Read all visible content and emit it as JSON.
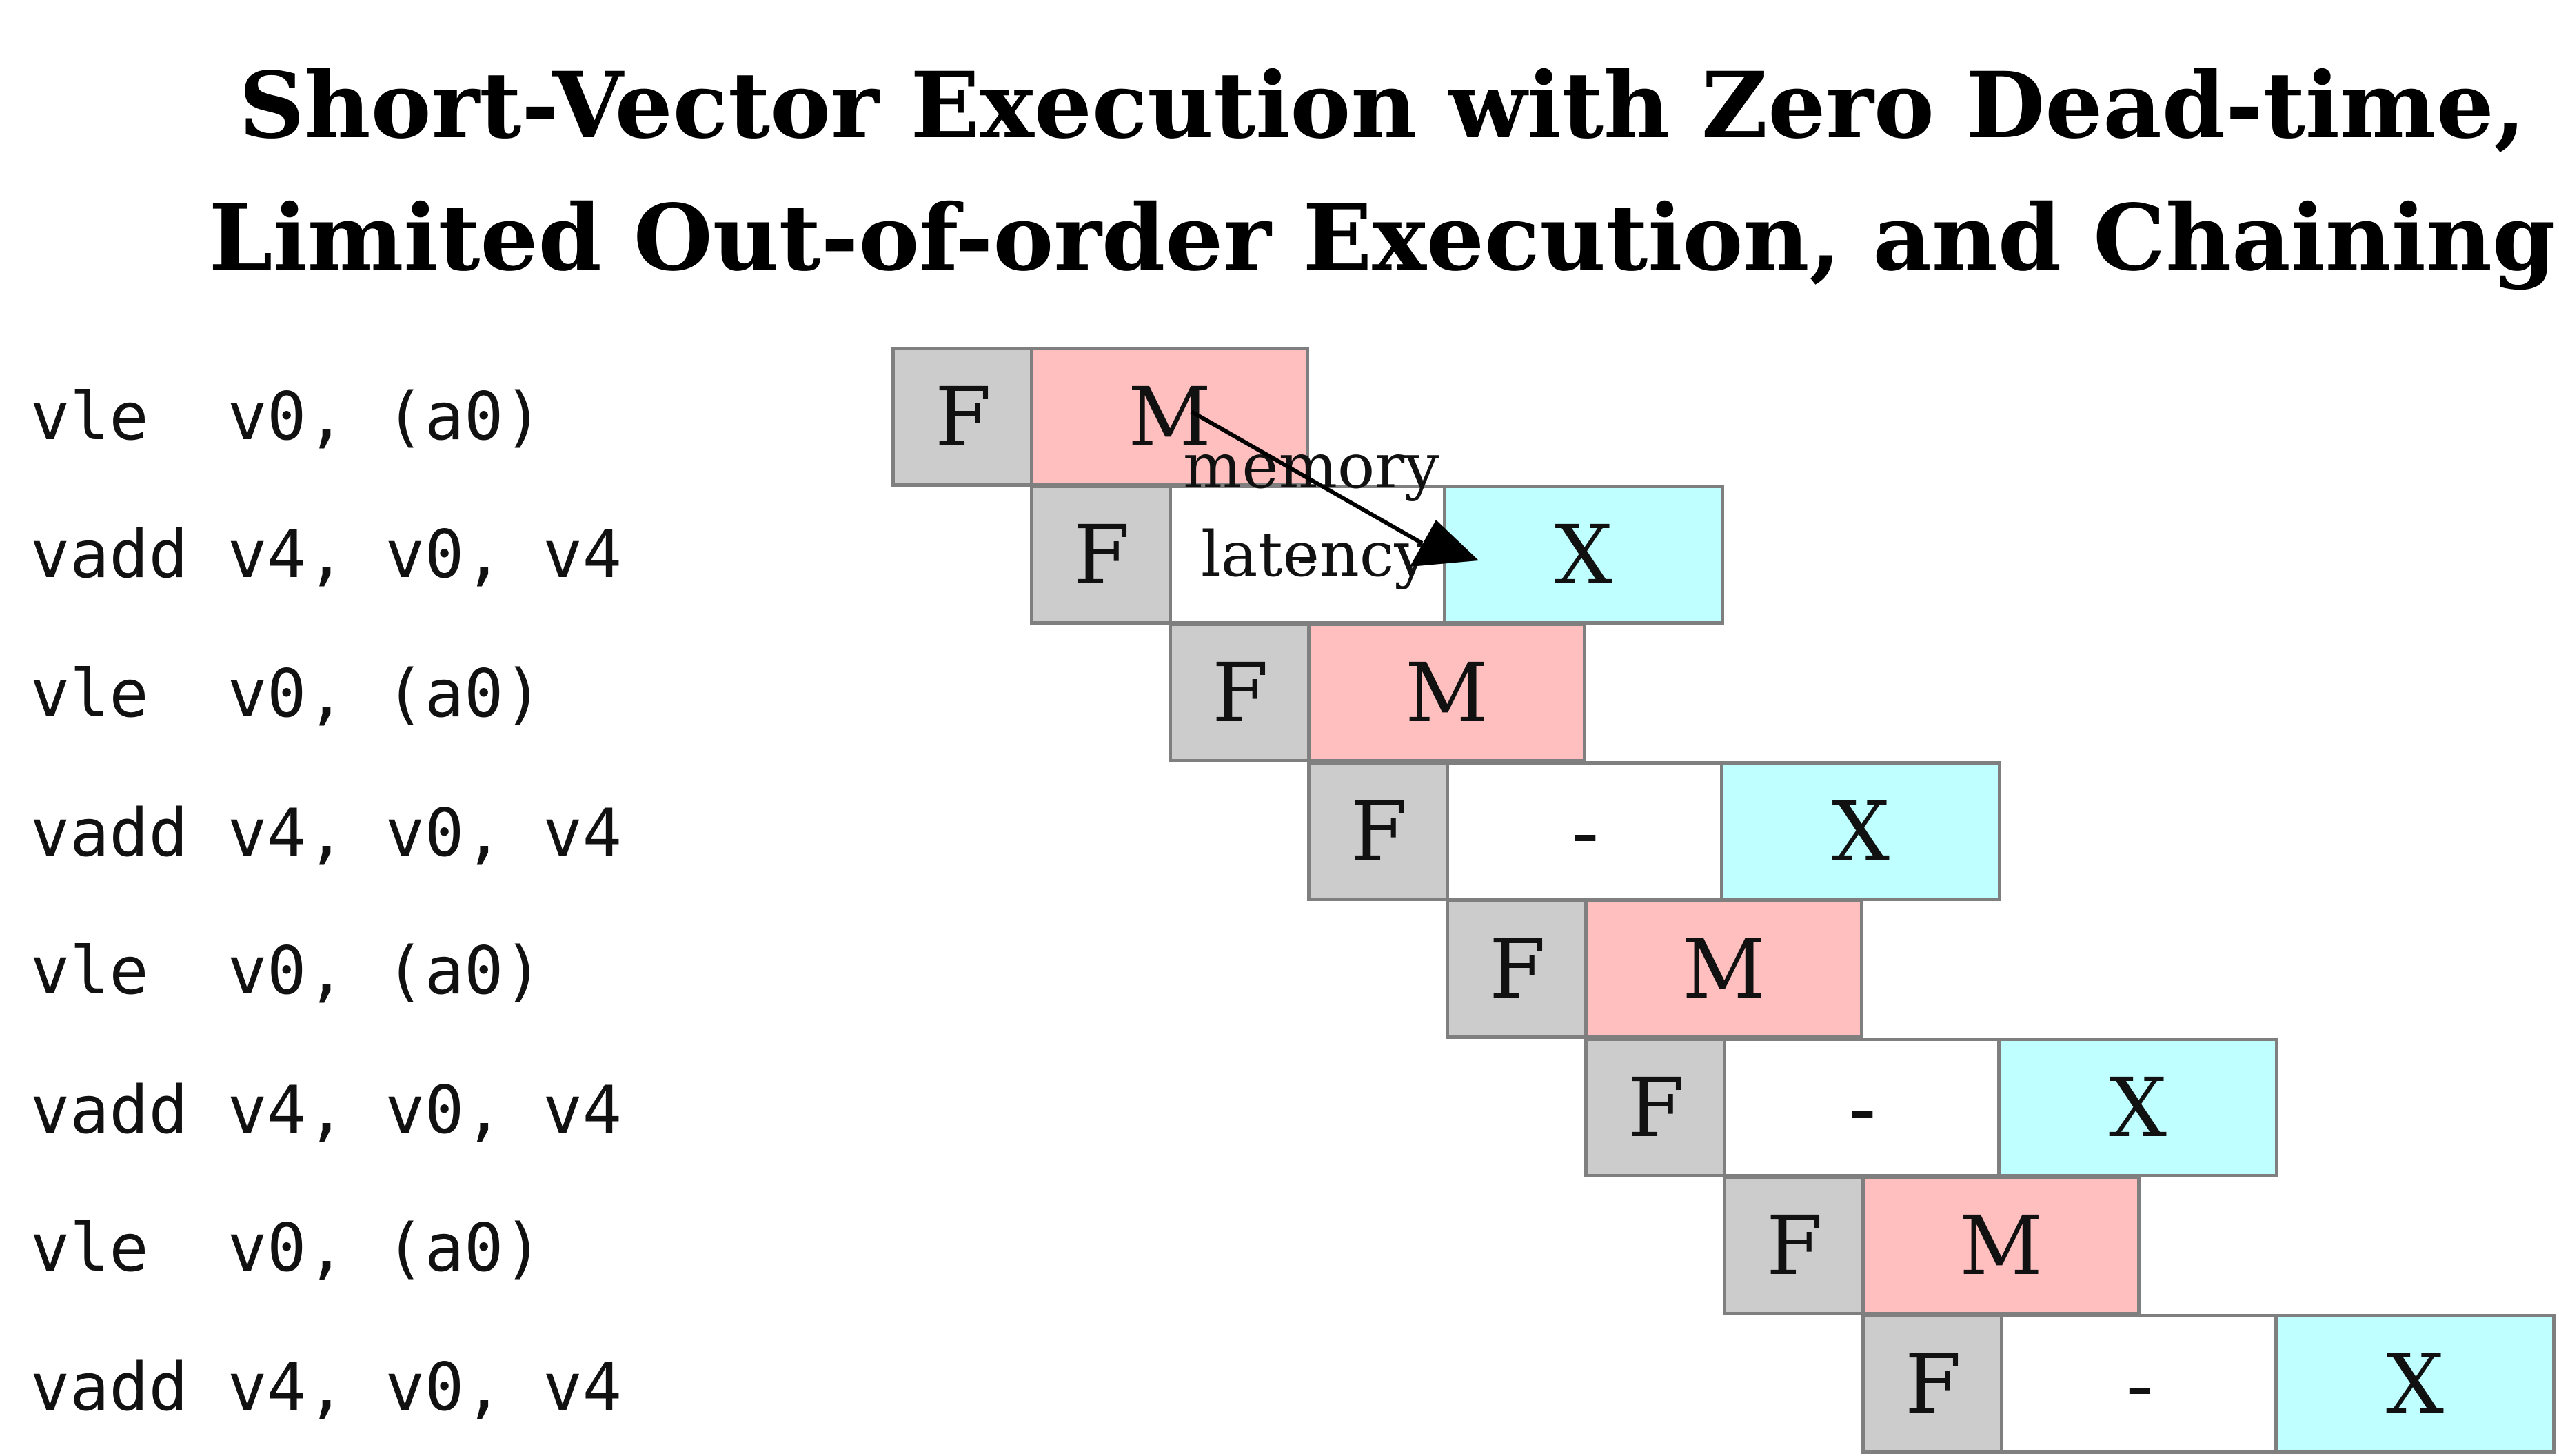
{
  "title": {
    "line1": "Short-Vector Execution with Zero Dead-time,",
    "line2": "Limited Out-of-order Execution, and Chaining"
  },
  "instructions": [
    {
      "text": "vle  v0, (a0)"
    },
    {
      "text": "vadd v4, v0, v4"
    },
    {
      "text": "vle  v0, (a0)"
    },
    {
      "text": "vadd v4, v0, v4"
    },
    {
      "text": "vle  v0, (a0)"
    },
    {
      "text": "vadd v4, v0, v4"
    },
    {
      "text": "vle  v0, (a0)"
    },
    {
      "text": "vadd v4, v0, v4"
    }
  ],
  "stages": [
    {
      "label": "F",
      "kind": "fetch"
    },
    {
      "label": "M",
      "kind": "memory"
    },
    {
      "label": "X",
      "kind": "execute"
    },
    {
      "label": "-",
      "kind": "stall"
    }
  ],
  "pipeline_rows": [
    {
      "stages": [
        "F",
        "M"
      ]
    },
    {
      "stages": [
        "F",
        "",
        "X"
      ]
    },
    {
      "stages": [
        "F",
        "M"
      ]
    },
    {
      "stages": [
        "F",
        "-",
        "X"
      ]
    },
    {
      "stages": [
        "F",
        "M"
      ]
    },
    {
      "stages": [
        "F",
        "-",
        "X"
      ]
    },
    {
      "stages": [
        "F",
        "M"
      ]
    },
    {
      "stages": [
        "F",
        "-",
        "X"
      ]
    }
  ],
  "annotation": {
    "line1": "memory",
    "line2": "latency",
    "dash": "-"
  },
  "colors": {
    "fetch": "#cccccc",
    "memory": "#ffbfbf",
    "execute": "#bfffff",
    "stall": "#ffffff",
    "border": "#7f7f7f"
  }
}
